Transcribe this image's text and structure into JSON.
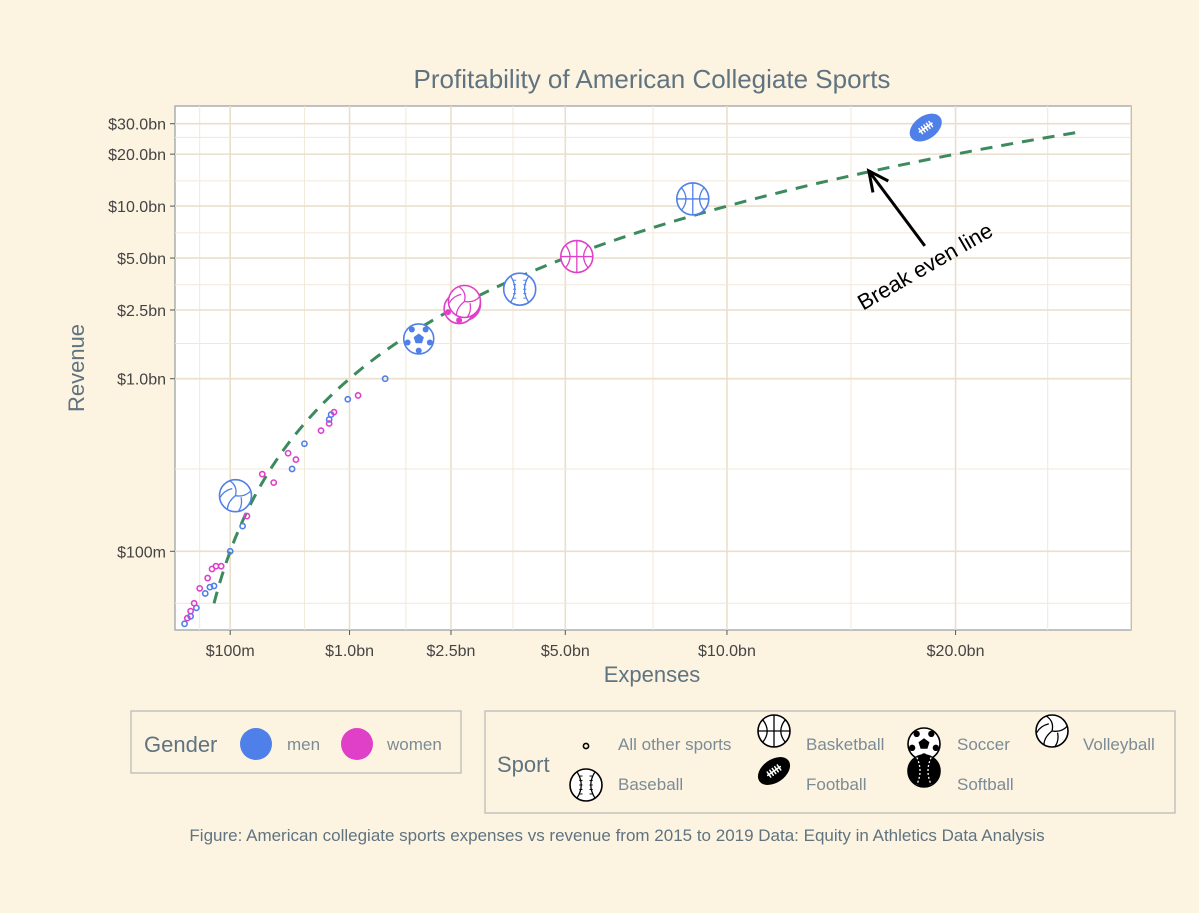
{
  "chart_data": {
    "type": "scatter",
    "title": "Profitability of American Collegiate Sports",
    "xlabel": "Expenses",
    "ylabel": "Revenue",
    "x_scale": "sqrt",
    "y_scale": "log",
    "x_ticks": [
      {
        "value": 0.1,
        "label": "$100m"
      },
      {
        "value": 1.0,
        "label": "$1.0bn"
      },
      {
        "value": 2.5,
        "label": "$2.5bn"
      },
      {
        "value": 5.0,
        "label": "$5.0bn"
      },
      {
        "value": 10.0,
        "label": "$10.0bn"
      },
      {
        "value": 20.0,
        "label": "$20.0bn"
      }
    ],
    "y_ticks": [
      {
        "value": 0.1,
        "label": "$100m"
      },
      {
        "value": 1.0,
        "label": "$1.0bn"
      },
      {
        "value": 2.5,
        "label": "$2.5bn"
      },
      {
        "value": 5.0,
        "label": "$5.0bn"
      },
      {
        "value": 10.0,
        "label": "$10.0bn"
      },
      {
        "value": 20.0,
        "label": "$20.0bn"
      },
      {
        "value": 30.0,
        "label": "$30.0bn"
      }
    ],
    "xlim": [
      0.0,
      30.0
    ],
    "ylim": [
      0.035,
      38.0
    ],
    "grid": true,
    "colors": {
      "men": "#4f7fe8",
      "women": "#e03fc8",
      "break_even": "#3d8a5f"
    },
    "break_even_line": {
      "from": 0.05,
      "to": 27.0
    },
    "annotation": {
      "text": "Break even line",
      "x": 15.8,
      "y": 16.0
    },
    "points": [
      {
        "sport": "Football",
        "gender": "men",
        "x": 18.5,
        "y": 28.5
      },
      {
        "sport": "Basketball",
        "gender": "men",
        "x": 8.8,
        "y": 11.0
      },
      {
        "sport": "Basketball",
        "gender": "women",
        "x": 5.3,
        "y": 5.1
      },
      {
        "sport": "Baseball",
        "gender": "men",
        "x": 3.9,
        "y": 3.3
      },
      {
        "sport": "Softball",
        "gender": "women",
        "x": 2.75,
        "y": 2.7
      },
      {
        "sport": "Soccer",
        "gender": "women",
        "x": 2.65,
        "y": 2.55
      },
      {
        "sport": "Soccer",
        "gender": "men",
        "x": 1.95,
        "y": 1.7
      },
      {
        "sport": "Volleyball",
        "gender": "women",
        "x": 2.75,
        "y": 2.8
      },
      {
        "sport": "Volleyball",
        "gender": "men",
        "x": 0.12,
        "y": 0.21
      },
      {
        "sport": "All other sports",
        "gender": "men",
        "x": 1.45,
        "y": 1.0
      },
      {
        "sport": "All other sports",
        "gender": "men",
        "x": 0.98,
        "y": 0.76
      },
      {
        "sport": "All other sports",
        "gender": "men",
        "x": 0.8,
        "y": 0.62
      },
      {
        "sport": "All other sports",
        "gender": "men",
        "x": 0.78,
        "y": 0.58
      },
      {
        "sport": "All other sports",
        "gender": "men",
        "x": 0.55,
        "y": 0.42
      },
      {
        "sport": "All other sports",
        "gender": "men",
        "x": 0.45,
        "y": 0.3
      },
      {
        "sport": "All other sports",
        "gender": "men",
        "x": 0.15,
        "y": 0.14
      },
      {
        "sport": "All other sports",
        "gender": "men",
        "x": 0.1,
        "y": 0.1
      },
      {
        "sport": "All other sports",
        "gender": "men",
        "x": 0.05,
        "y": 0.063
      },
      {
        "sport": "All other sports",
        "gender": "men",
        "x": 0.04,
        "y": 0.062
      },
      {
        "sport": "All other sports",
        "gender": "men",
        "x": 0.03,
        "y": 0.057
      },
      {
        "sport": "All other sports",
        "gender": "men",
        "x": 0.015,
        "y": 0.047
      },
      {
        "sport": "All other sports",
        "gender": "men",
        "x": 0.008,
        "y": 0.042
      },
      {
        "sport": "All other sports",
        "gender": "men",
        "x": 0.003,
        "y": 0.038
      },
      {
        "sport": "All other sports",
        "gender": "women",
        "x": 1.1,
        "y": 0.8
      },
      {
        "sport": "All other sports",
        "gender": "women",
        "x": 0.83,
        "y": 0.64
      },
      {
        "sport": "All other sports",
        "gender": "women",
        "x": 0.78,
        "y": 0.55
      },
      {
        "sport": "All other sports",
        "gender": "women",
        "x": 0.7,
        "y": 0.5
      },
      {
        "sport": "All other sports",
        "gender": "women",
        "x": 0.48,
        "y": 0.34
      },
      {
        "sport": "All other sports",
        "gender": "women",
        "x": 0.42,
        "y": 0.37
      },
      {
        "sport": "All other sports",
        "gender": "women",
        "x": 0.32,
        "y": 0.25
      },
      {
        "sport": "All other sports",
        "gender": "women",
        "x": 0.25,
        "y": 0.28
      },
      {
        "sport": "All other sports",
        "gender": "women",
        "x": 0.17,
        "y": 0.16
      },
      {
        "sport": "All other sports",
        "gender": "women",
        "x": 0.07,
        "y": 0.082
      },
      {
        "sport": "All other sports",
        "gender": "women",
        "x": 0.055,
        "y": 0.082
      },
      {
        "sport": "All other sports",
        "gender": "women",
        "x": 0.045,
        "y": 0.079
      },
      {
        "sport": "All other sports",
        "gender": "women",
        "x": 0.035,
        "y": 0.07
      },
      {
        "sport": "All other sports",
        "gender": "women",
        "x": 0.02,
        "y": 0.061
      },
      {
        "sport": "All other sports",
        "gender": "women",
        "x": 0.012,
        "y": 0.05
      },
      {
        "sport": "All other sports",
        "gender": "women",
        "x": 0.008,
        "y": 0.045
      },
      {
        "sport": "All other sports",
        "gender": "women",
        "x": 0.005,
        "y": 0.041
      }
    ]
  },
  "legend_gender": {
    "title": "Gender",
    "items": [
      {
        "label": "men",
        "color": "#4f7fe8"
      },
      {
        "label": "women",
        "color": "#e03fc8"
      }
    ]
  },
  "legend_sport": {
    "title": "Sport",
    "items": [
      {
        "label": "All other sports",
        "icon": "small-circle-icon"
      },
      {
        "label": "Baseball",
        "icon": "baseball-icon"
      },
      {
        "label": "Basketball",
        "icon": "basketball-icon"
      },
      {
        "label": "Football",
        "icon": "football-icon"
      },
      {
        "label": "Soccer",
        "icon": "soccer-ball-icon"
      },
      {
        "label": "Softball",
        "icon": "softball-icon"
      },
      {
        "label": "Volleyball",
        "icon": "volleyball-icon"
      }
    ]
  },
  "caption": "Figure: American collegiate sports expenses vs revenue from 2015 to 2019 Data: Equity in Athletics Data Analysis"
}
